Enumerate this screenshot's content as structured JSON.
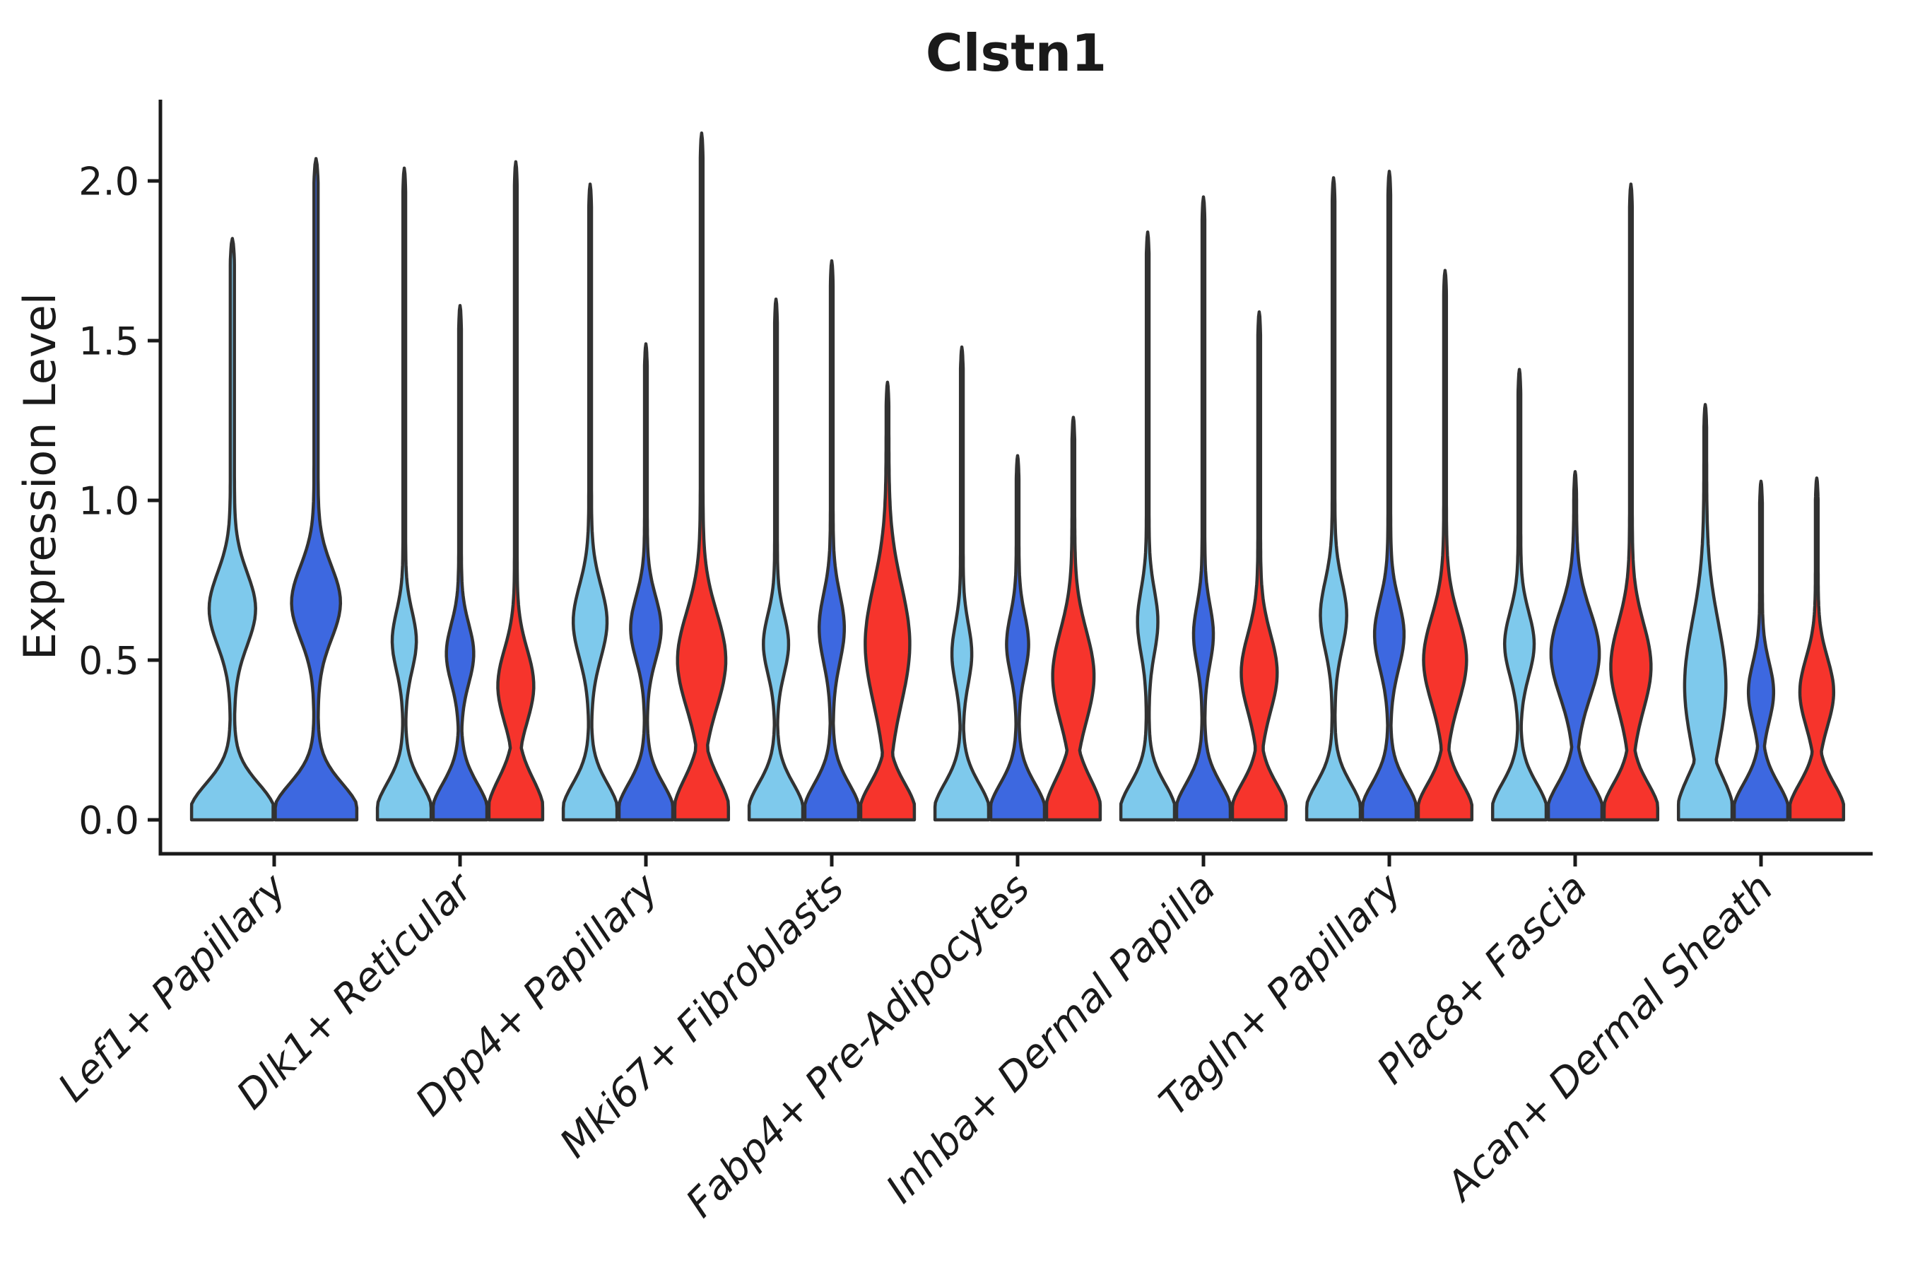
{
  "figure": {
    "title": "Clstn1"
  },
  "chart_data": {
    "type": "violin",
    "title": "Clstn1",
    "xlabel": "",
    "ylabel": "Expression Level",
    "ylim": [
      0,
      2.25
    ],
    "yticks": [
      "0.0",
      "0.5",
      "1.0",
      "1.5",
      "2.0"
    ],
    "grid": false,
    "legend_position": "none",
    "background_color": "#ffffff",
    "axis_color": "#1a1a1a",
    "violin_outline_color": "#323232",
    "split_colors": [
      "#7EC9EC",
      "#3D68E0",
      "#F6342C"
    ],
    "split_color_names": [
      "sky-blue",
      "royal-blue",
      "red"
    ],
    "categories": [
      "Lef1+ Papillary",
      "Dlk1+ Reticular",
      "Dpp4+ Papillary",
      "Mki67+ Fibroblasts",
      "Fabp4+ Pre-Adipocytes",
      "Inhba+ Dermal Papilla",
      "Tagln+ Papillary",
      "Plac8+ Fascia",
      "Acan+ Dermal Sheath"
    ],
    "groups": [
      {
        "category": "Lef1+ Papillary",
        "violins": [
          {
            "split": 0,
            "max": 1.82,
            "peak": 0.66,
            "peak_width": 0.16,
            "peak_amp": 0.52
          },
          {
            "split": 1,
            "max": 2.07,
            "peak": 0.68,
            "peak_width": 0.16,
            "peak_amp": 0.55
          }
        ]
      },
      {
        "category": "Dlk1+ Reticular",
        "violins": [
          {
            "split": 0,
            "max": 2.04,
            "peak": 0.56,
            "peak_width": 0.13,
            "peak_amp": 0.4
          },
          {
            "split": 1,
            "max": 1.61,
            "peak": 0.52,
            "peak_width": 0.13,
            "peak_amp": 0.46
          },
          {
            "split": 2,
            "max": 2.06,
            "peak": 0.42,
            "peak_width": 0.16,
            "peak_amp": 0.62,
            "base_sigma": 0.15
          }
        ]
      },
      {
        "category": "Dpp4+ Papillary",
        "violins": [
          {
            "split": 0,
            "max": 1.99,
            "peak": 0.62,
            "peak_width": 0.16,
            "peak_amp": 0.58
          },
          {
            "split": 1,
            "max": 1.49,
            "peak": 0.6,
            "peak_width": 0.14,
            "peak_amp": 0.52
          },
          {
            "split": 2,
            "max": 2.15,
            "peak": 0.5,
            "peak_width": 0.21,
            "peak_amp": 0.85,
            "base_sigma": 0.15
          }
        ]
      },
      {
        "category": "Mki67+ Fibroblasts",
        "violins": [
          {
            "split": 0,
            "max": 1.63,
            "peak": 0.55,
            "peak_width": 0.13,
            "peak_amp": 0.42
          },
          {
            "split": 1,
            "max": 1.75,
            "peak": 0.6,
            "peak_width": 0.15,
            "peak_amp": 0.42
          },
          {
            "split": 2,
            "max": 1.37,
            "peak": 0.55,
            "peak_width": 0.26,
            "peak_amp": 0.78
          }
        ]
      },
      {
        "category": "Fabp4+ Pre-Adipocytes",
        "violins": [
          {
            "split": 0,
            "max": 1.48,
            "peak": 0.52,
            "peak_width": 0.13,
            "peak_amp": 0.32
          },
          {
            "split": 1,
            "max": 1.14,
            "peak": 0.55,
            "peak_width": 0.13,
            "peak_amp": 0.36
          },
          {
            "split": 2,
            "max": 1.26,
            "peak": 0.45,
            "peak_width": 0.2,
            "peak_amp": 0.72,
            "base_sigma": 0.15
          }
        ]
      },
      {
        "category": "Inhba+ Dermal Papilla",
        "violins": [
          {
            "split": 0,
            "max": 1.84,
            "peak": 0.62,
            "peak_width": 0.14,
            "peak_amp": 0.33
          },
          {
            "split": 1,
            "max": 1.95,
            "peak": 0.58,
            "peak_width": 0.13,
            "peak_amp": 0.32
          },
          {
            "split": 2,
            "max": 1.59,
            "peak": 0.46,
            "peak_width": 0.17,
            "peak_amp": 0.62
          }
        ]
      },
      {
        "category": "Tagln+ Papillary",
        "violins": [
          {
            "split": 0,
            "max": 2.01,
            "peak": 0.64,
            "peak_width": 0.15,
            "peak_amp": 0.44
          },
          {
            "split": 1,
            "max": 2.03,
            "peak": 0.58,
            "peak_width": 0.15,
            "peak_amp": 0.5
          },
          {
            "split": 2,
            "max": 1.72,
            "peak": 0.5,
            "peak_width": 0.19,
            "peak_amp": 0.75
          }
        ]
      },
      {
        "category": "Plac8+ Fascia",
        "violins": [
          {
            "split": 0,
            "max": 1.41,
            "peak": 0.55,
            "peak_width": 0.14,
            "peak_amp": 0.5
          },
          {
            "split": 1,
            "max": 1.09,
            "peak": 0.52,
            "peak_width": 0.19,
            "peak_amp": 0.85
          },
          {
            "split": 2,
            "max": 1.99,
            "peak": 0.48,
            "peak_width": 0.19,
            "peak_amp": 0.7
          }
        ]
      },
      {
        "category": "Acan+ Dermal Sheath",
        "violins": [
          {
            "split": 0,
            "max": 1.3,
            "peak": 0.42,
            "peak_width": 0.28,
            "peak_amp": 0.72,
            "base_sigma": 0.16
          },
          {
            "split": 1,
            "max": 1.06,
            "peak": 0.4,
            "peak_width": 0.13,
            "peak_amp": 0.42
          },
          {
            "split": 2,
            "max": 1.07,
            "peak": 0.4,
            "peak_width": 0.15,
            "peak_amp": 0.58
          }
        ]
      }
    ]
  }
}
